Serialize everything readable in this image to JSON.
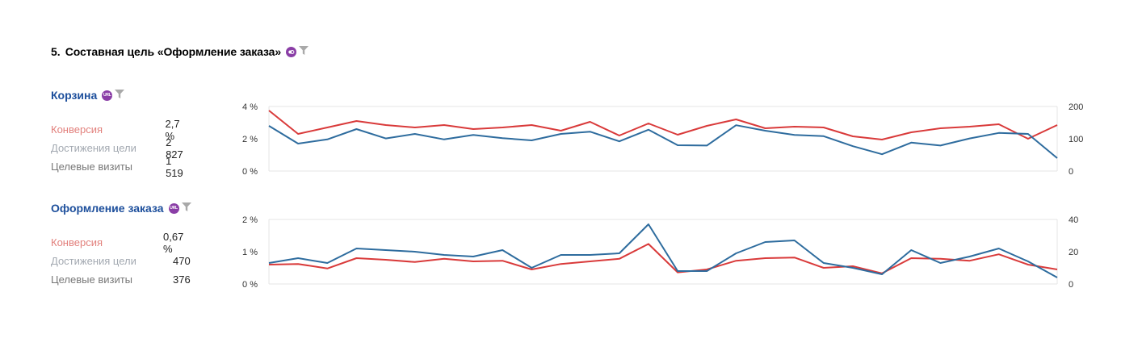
{
  "goal": {
    "number": "5.",
    "title": "Составная цель «Оформление заказа»",
    "badge_icon": "composite-goal-icon",
    "filter_icon": "funnel-icon"
  },
  "colors": {
    "conversion_line": "#d93a3a",
    "reach_line": "#2e6c9e",
    "step_title": "#1d4f9c",
    "badge": "#8a3ea6"
  },
  "steps": [
    {
      "title": "Корзина",
      "badge_text": "URL",
      "metrics": [
        {
          "label": "Конверсия",
          "value": "2,7 %"
        },
        {
          "label": "Достижения цели",
          "value": "2 827"
        },
        {
          "label": "Целевые визиты",
          "value": "1 519"
        }
      ]
    },
    {
      "title": "Оформление заказа",
      "badge_text": "URL",
      "metrics": [
        {
          "label": "Конверсия",
          "value": "0,67 %"
        },
        {
          "label": "Достижения цели",
          "value": "470"
        },
        {
          "label": "Целевые визиты",
          "value": "376"
        }
      ]
    }
  ],
  "chart_data": [
    {
      "type": "line",
      "left_axis": {
        "ticks": [
          "0 %",
          "2 %",
          "4 %"
        ],
        "range": [
          0,
          4
        ]
      },
      "right_axis": {
        "ticks": [
          "0",
          "100",
          "200"
        ],
        "range": [
          0,
          200
        ]
      },
      "grid": false,
      "series": [
        {
          "axis": "left",
          "color": "#d93a3a",
          "values": [
            3.75,
            2.3,
            2.7,
            3.1,
            2.85,
            2.7,
            2.85,
            2.6,
            2.7,
            2.85,
            2.5,
            3.05,
            2.2,
            2.95,
            2.25,
            2.8,
            3.2,
            2.65,
            2.75,
            2.7,
            2.15,
            1.95,
            2.4,
            2.65,
            2.75,
            2.9,
            2.0,
            2.85
          ]
        },
        {
          "axis": "right",
          "color": "#2e6c9e",
          "values": [
            140,
            85,
            98,
            130,
            101,
            115,
            98,
            112,
            102,
            95,
            115,
            122,
            92,
            128,
            80,
            79,
            142,
            125,
            112,
            108,
            77,
            52,
            88,
            79,
            101,
            118,
            115,
            40
          ]
        }
      ]
    },
    {
      "type": "line",
      "left_axis": {
        "ticks": [
          "0 %",
          "1 %",
          "2 %"
        ],
        "range": [
          0,
          2
        ]
      },
      "right_axis": {
        "ticks": [
          "0",
          "20",
          "40"
        ],
        "range": [
          0,
          40
        ]
      },
      "grid": false,
      "series": [
        {
          "axis": "left",
          "color": "#d93a3a",
          "values": [
            0.6,
            0.62,
            0.48,
            0.8,
            0.75,
            0.68,
            0.78,
            0.7,
            0.72,
            0.45,
            0.62,
            0.7,
            0.78,
            1.24,
            0.36,
            0.45,
            0.72,
            0.8,
            0.82,
            0.5,
            0.55,
            0.33,
            0.8,
            0.78,
            0.72,
            0.92,
            0.6,
            0.45
          ]
        },
        {
          "axis": "right",
          "color": "#2e6c9e",
          "values": [
            13,
            16,
            13,
            22,
            21,
            20,
            18,
            17,
            21,
            10,
            18,
            18,
            19,
            37,
            8,
            8,
            19,
            26,
            27,
            13,
            10,
            6,
            21,
            13,
            17,
            22,
            14,
            4
          ]
        }
      ]
    }
  ]
}
